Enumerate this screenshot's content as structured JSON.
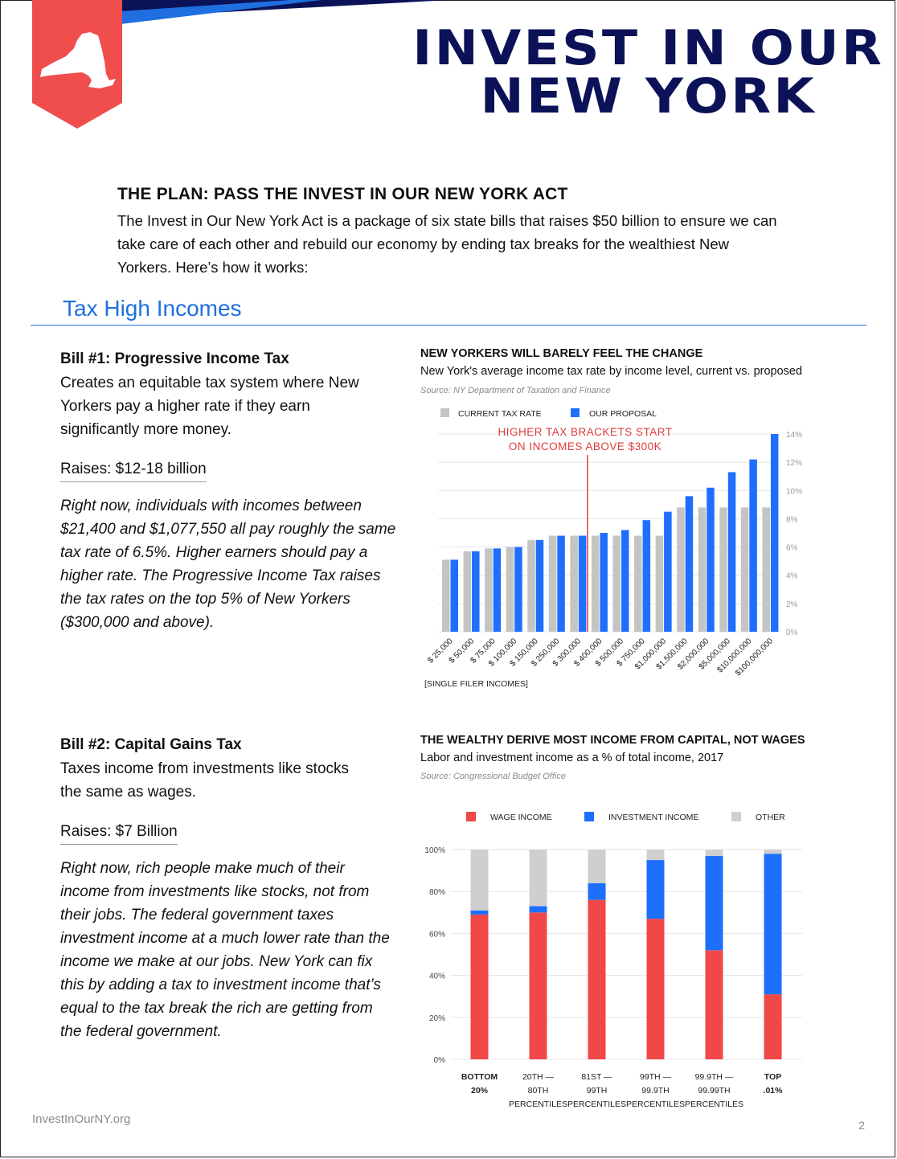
{
  "header": {
    "title_line1": "INVEST IN OUR",
    "title_line2": "NEW YORK",
    "colors": {
      "navy": "#0c1257",
      "blue": "#1f6fe0",
      "red": "#f04d4d"
    }
  },
  "plan": {
    "heading": "THE PLAN: PASS THE INVEST IN OUR NEW YORK ACT",
    "body": "The Invest in Our New York Act is a package of six state bills that raises $50 billion to ensure we can take care of each other and rebuild our economy by ending tax breaks for the wealthiest New Yorkers. Here’s how it works:"
  },
  "section": {
    "title": "Tax High Incomes"
  },
  "bill1": {
    "title": "Bill #1: Progressive Income Tax",
    "desc": "Creates an equitable tax system where New Yorkers pay a higher rate if they earn significantly more money.",
    "raises": "Raises: $12-18 billion",
    "italic": "Right now, individuals with incomes between $21,400 and $1,077,550 all pay roughly the same tax rate of 6.5%. Higher earners should pay a higher rate. The Progressive Income Tax raises the tax rates on the top 5% of New Yorkers ($300,000 and above)."
  },
  "bill2": {
    "title": "Bill #2: Capital Gains Tax",
    "desc": "Taxes income from investments like stocks the same as wages.",
    "raises": "Raises: $7 Billion",
    "italic": "Right now, rich people make much of their income from investments like stocks, not from their jobs. The federal government taxes investment income at a much lower rate than the income we make at our jobs. New York can fix this by adding a tax to investment income that’s equal to the tax break the rich are getting from the federal government."
  },
  "chart1": {
    "heading": "NEW YORKERS WILL BARELY FEEL THE CHANGE",
    "subtitle": "New York's average income tax rate by income level, current vs. proposed",
    "source": "Source: NY Department of Taxation and Finance",
    "annotation_line1": "HIGHER TAX BRACKETS START",
    "annotation_line2": "ON INCOMES ABOVE $300K",
    "x_note": "[SINGLE FILER INCOMES]"
  },
  "chart2": {
    "heading": "THE WEALTHY DERIVE MOST INCOME FROM CAPITAL, NOT WAGES",
    "subtitle": "Labor and investment income as a % of total income, 2017",
    "source": "Source: Congressional Budget Office"
  },
  "chart_data": [
    {
      "type": "bar",
      "categories": [
        "$ 25,000",
        "$ 50,000",
        "$ 75,000",
        "$ 100,000",
        "$ 150,000",
        "$ 250,000",
        "$ 300,000",
        "$ 400,000",
        "$ 500,000",
        "$ 750,000",
        "$1,000,000",
        "$1,500,000",
        "$2,000,000",
        "$5,000,000",
        "$10,000,000",
        "$100,000,000"
      ],
      "series": [
        {
          "name": "CURRENT TAX RATE",
          "color": "#c4c4c4",
          "values": [
            5.1,
            5.7,
            5.9,
            6.0,
            6.5,
            6.8,
            6.8,
            6.8,
            6.8,
            6.8,
            6.8,
            8.8,
            8.8,
            8.8,
            8.8,
            8.8
          ]
        },
        {
          "name": "OUR PROPOSAL",
          "color": "#1f6fff",
          "values": [
            5.1,
            5.7,
            5.9,
            6.0,
            6.5,
            6.8,
            6.8,
            7.0,
            7.2,
            7.9,
            8.5,
            9.6,
            10.2,
            11.3,
            12.2,
            14.0
          ]
        }
      ],
      "ylim": [
        0,
        14
      ],
      "yticks": [
        "0%",
        "2%",
        "4%",
        "6%",
        "8%",
        "10%",
        "12%",
        "14%"
      ],
      "grid": true,
      "legend": "top-left",
      "annotation_after_index": 6
    },
    {
      "type": "bar",
      "stacked": true,
      "categories": [
        [
          "BOTTOM",
          "20%"
        ],
        [
          "20TH —",
          "80TH",
          "PERCENTILES"
        ],
        [
          "81ST —",
          "99TH",
          "PERCENTILES"
        ],
        [
          "99TH —",
          "99.9TH",
          "PERCENTILES"
        ],
        [
          "99.9TH —",
          "99.99TH",
          "PERCENTILES"
        ],
        [
          "TOP",
          ".01%"
        ]
      ],
      "bold_categories": [
        0,
        5
      ],
      "series": [
        {
          "name": "WAGE INCOME",
          "color": "#f04848",
          "values": [
            69,
            70,
            76,
            67,
            52,
            31
          ]
        },
        {
          "name": "INVESTMENT INCOME",
          "color": "#1f6fff",
          "values": [
            2,
            3,
            8,
            28,
            45,
            67
          ]
        },
        {
          "name": "OTHER",
          "color": "#cfcfcf",
          "values": [
            29,
            27,
            16,
            5,
            3,
            2
          ]
        }
      ],
      "ylim": [
        0,
        100
      ],
      "yticks": [
        "0%",
        "20%",
        "40%",
        "60%",
        "80%",
        "100%"
      ],
      "grid": true,
      "legend": "top"
    }
  ],
  "footer": {
    "url": "InvestInOurNY.org",
    "page": "2"
  }
}
